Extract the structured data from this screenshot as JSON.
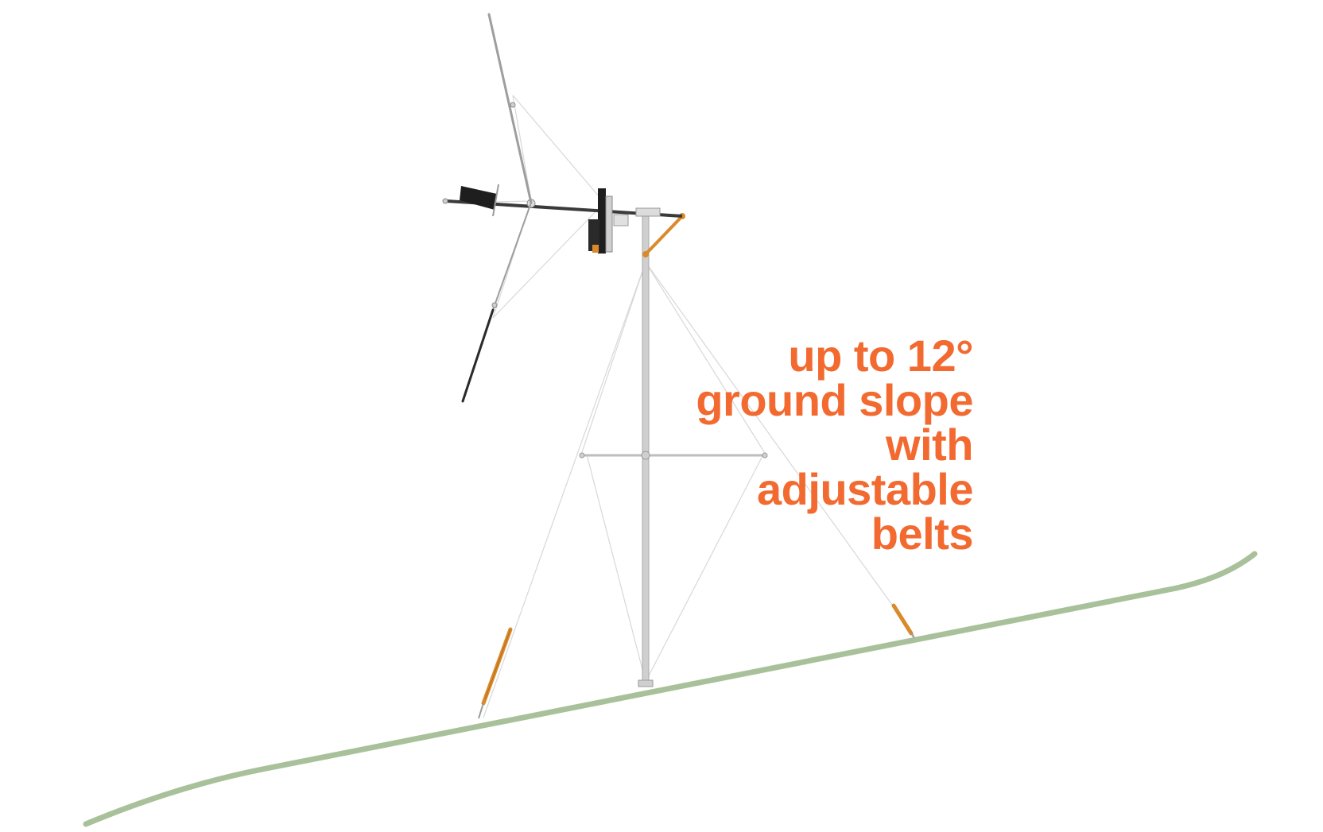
{
  "callout": {
    "lines": [
      "up to 12°",
      "ground slope",
      "with",
      "adjustable",
      "belts"
    ]
  },
  "colors": {
    "callout_text": "#f26a30",
    "ground": "#a9c19a",
    "pole": "#c8c8c8",
    "pole_outline": "#9a9a9a",
    "strap": "#d98a2b",
    "guy_wire": "#d4d4d4",
    "dark_part": "#1e1e1e"
  },
  "diagram": {
    "subject": "wind turbine on guyed mast",
    "icons": [
      "wind-turbine-blade-icon",
      "tail-vane-icon",
      "strap-tensioner-icon"
    ]
  }
}
